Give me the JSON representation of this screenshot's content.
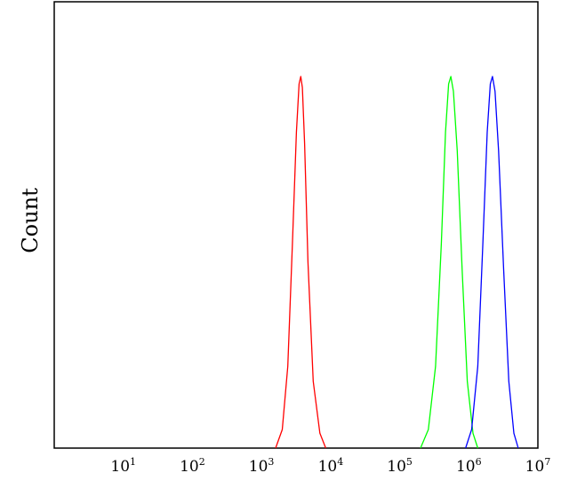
{
  "chart_data": {
    "type": "line",
    "title": "",
    "xlabel": "",
    "ylabel": "Count",
    "x_scale": "log",
    "xlim": [
      1,
      10000000
    ],
    "ylim": [
      0,
      100
    ],
    "grid": false,
    "legend": "none",
    "x_ticks": [
      {
        "value": 10,
        "base": "10",
        "exp": "1"
      },
      {
        "value": 100,
        "base": "10",
        "exp": "2"
      },
      {
        "value": 1000,
        "base": "10",
        "exp": "3"
      },
      {
        "value": 10000,
        "base": "10",
        "exp": "4"
      },
      {
        "value": 100000,
        "base": "10",
        "exp": "5"
      },
      {
        "value": 1000000,
        "base": "10",
        "exp": "6"
      },
      {
        "value": 10000000,
        "base": "10",
        "exp": "7"
      }
    ],
    "series": [
      {
        "color": "#ff0000",
        "x": [
          1600,
          2000,
          2400,
          2800,
          3200,
          3500,
          3700,
          3900,
          4200,
          4700,
          5600,
          7000,
          8500
        ],
        "y": [
          0,
          5,
          22,
          55,
          85,
          98,
          100,
          97,
          82,
          50,
          18,
          4,
          0
        ]
      },
      {
        "color": "#00ff00",
        "x": [
          200000,
          260000,
          330000,
          400000,
          460000,
          510000,
          550000,
          600000,
          680000,
          800000,
          950000,
          1150000,
          1350000
        ],
        "y": [
          0,
          5,
          22,
          55,
          85,
          98,
          100,
          96,
          80,
          48,
          18,
          4,
          0
        ]
      },
      {
        "color": "#0000ff",
        "x": [
          900000,
          1100000,
          1350000,
          1600000,
          1850000,
          2050000,
          2200000,
          2400000,
          2700000,
          3200000,
          3800000,
          4500000,
          5200000
        ],
        "y": [
          0,
          5,
          22,
          55,
          85,
          98,
          100,
          96,
          80,
          48,
          18,
          4,
          0
        ]
      }
    ]
  }
}
